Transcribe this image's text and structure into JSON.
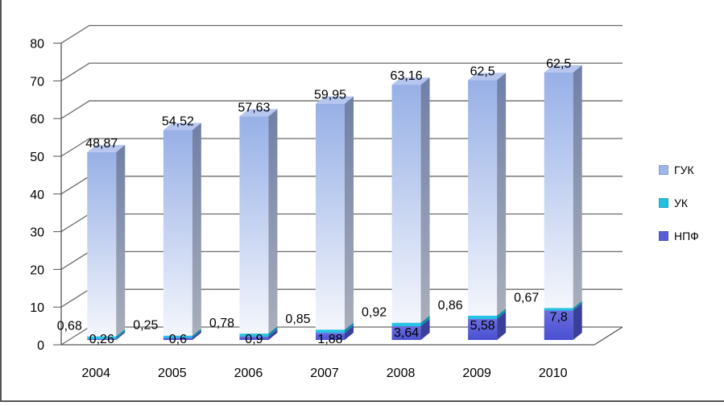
{
  "chart_data": {
    "type": "bar",
    "stacked": true,
    "three_d": true,
    "categories": [
      "2004",
      "2005",
      "2006",
      "2007",
      "2008",
      "2009",
      "2010"
    ],
    "y_ticks": [
      "0",
      "10",
      "20",
      "30",
      "40",
      "50",
      "60",
      "70",
      "80"
    ],
    "ylim": [
      0,
      80
    ],
    "grid": true,
    "legend_position": "right",
    "series": [
      {
        "name": "НПФ",
        "values": [
          0.26,
          0.6,
          0.9,
          1.88,
          3.64,
          5.58,
          7.8
        ],
        "labels": [
          "0,26",
          "0,6",
          "0,9",
          "1,88",
          "3,64",
          "5,58",
          "7,8"
        ],
        "color": "#5a5fd8"
      },
      {
        "name": "УК",
        "values": [
          0.68,
          0.25,
          0.78,
          0.85,
          0.92,
          0.86,
          0.67
        ],
        "labels": [
          "0,68",
          "0,25",
          "0,78",
          "0,85",
          "0,92",
          "0,86",
          "0,67"
        ],
        "color": "#22bfe0"
      },
      {
        "name": "ГУК",
        "values": [
          48.87,
          54.52,
          57.63,
          59.95,
          63.16,
          62.5,
          62.5
        ],
        "labels": [
          "48,87",
          "54,52",
          "57,63",
          "59,95",
          "63,16",
          "62,5",
          "62,5"
        ],
        "color": "#9fb6e8"
      }
    ],
    "legend_order": [
      "ГУК",
      "УК",
      "НПФ"
    ]
  }
}
